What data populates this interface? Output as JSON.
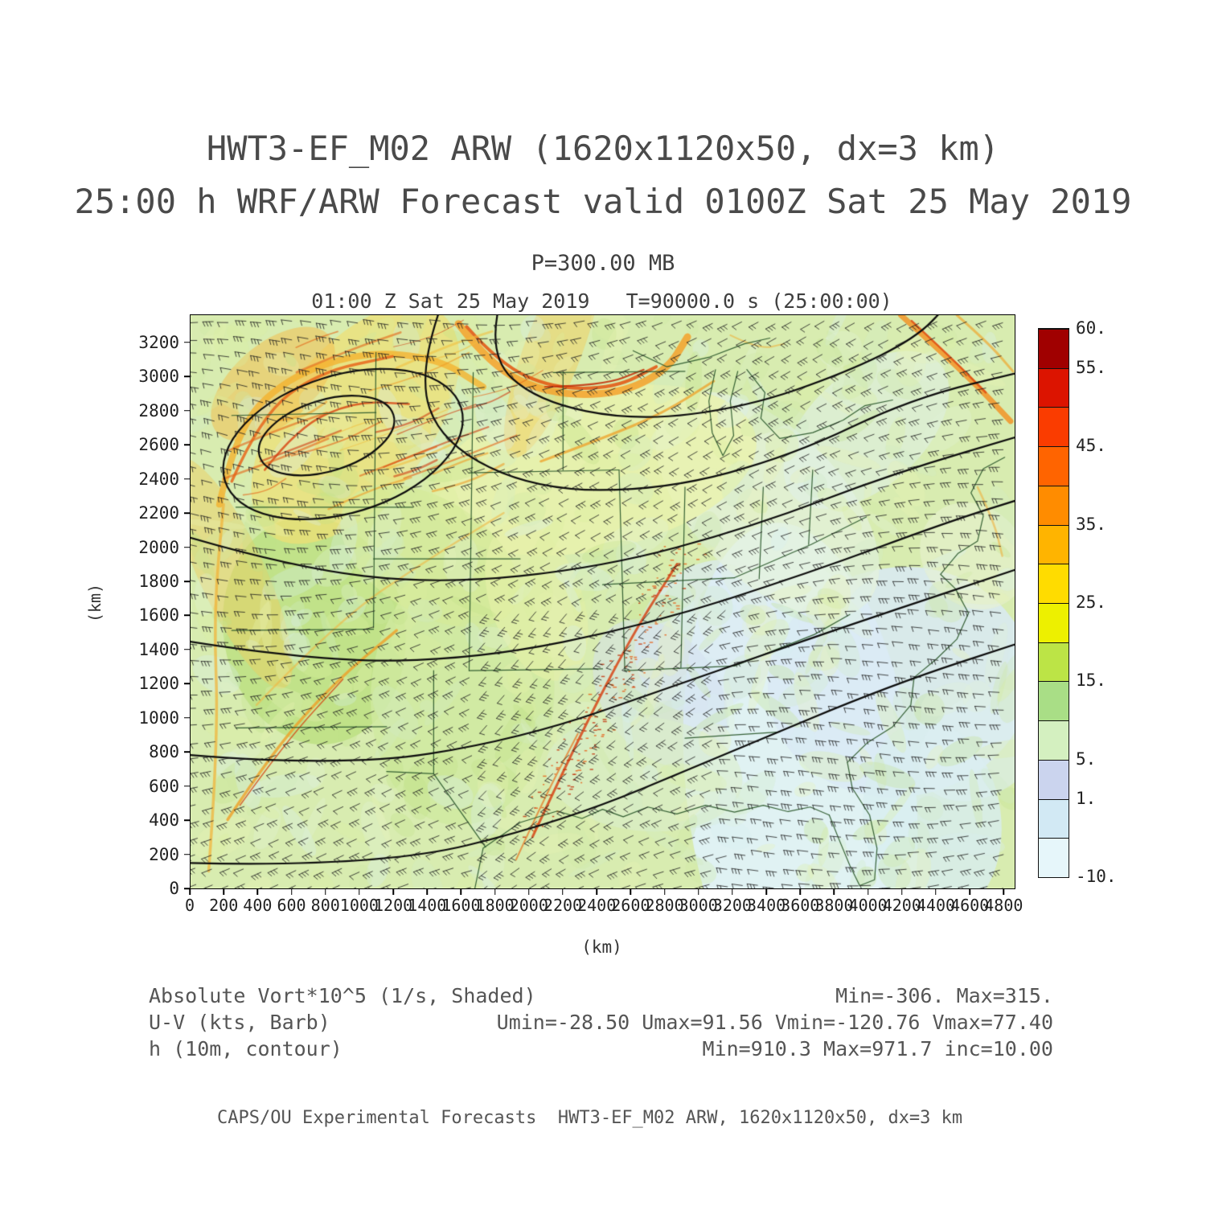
{
  "page": {
    "title_line1": "HWT3-EF_M02 ARW (1620x1120x50, dx=3 km)",
    "title_line2": "25:00 h WRF/ARW Forecast valid 0100Z Sat 25 May 2019",
    "pressure_label": "P=300.00 MB",
    "time_label": "01:00 Z Sat 25 May 2019   T=90000.0 s (25:00:00)",
    "footer": "CAPS/OU Experimental Forecasts  HWT3-EF_M02 ARW, 1620x1120x50, dx=3 km"
  },
  "legend": {
    "rows": [
      {
        "label": "Absolute Vort*10^5 (1/s, Shaded)",
        "stats": "Min=-306. Max=315."
      },
      {
        "label": "U-V (kts, Barb)",
        "stats": "Umin=-28.50 Umax=91.56 Vmin=-120.76 Vmax=77.40"
      },
      {
        "label": "h (10m, contour)",
        "stats": "Min=910.3 Max=971.7 inc=10.00"
      }
    ]
  },
  "chart_data": {
    "type": "heatmap",
    "title": "HWT3-EF_M02 ARW (1620x1120x50, dx=3 km)",
    "subtitle": "25:00 h WRF/ARW Forecast valid 0100Z Sat 25 May 2019",
    "pressure_level": "P=300.00 MB",
    "valid_time": "01:00 Z Sat 25 May 2019",
    "model_time": "T=90000.0 s (25:00:00)",
    "xlabel": "(km)",
    "ylabel": "(km)",
    "xlim": [
      0,
      4860
    ],
    "ylim": [
      0,
      3360
    ],
    "x_ticks": [
      0,
      200,
      400,
      600,
      800,
      1000,
      1200,
      1400,
      1600,
      1800,
      2000,
      2200,
      2400,
      2600,
      2800,
      3000,
      3200,
      3400,
      3600,
      3800,
      4000,
      4200,
      4400,
      4600,
      4800
    ],
    "y_ticks": [
      0,
      200,
      400,
      600,
      800,
      1000,
      1200,
      1400,
      1600,
      1800,
      2000,
      2200,
      2400,
      2600,
      2800,
      3000,
      3200
    ],
    "grid": false,
    "legend_position": "right-colorbar",
    "colorbar": {
      "levels": [
        -10,
        -5,
        1,
        5,
        10,
        15,
        20,
        25,
        30,
        35,
        40,
        45,
        50,
        55,
        60
      ],
      "colors": [
        "#e6f6fa",
        "#d2e9f4",
        "#cbd4ee",
        "#d4f0c0",
        "#a9de86",
        "#bce446",
        "#edf000",
        "#ffdc00",
        "#ffb400",
        "#ff8c00",
        "#ff6400",
        "#fa3c00",
        "#dc1400",
        "#a00000"
      ],
      "tick_labels": [
        {
          "text": "60.",
          "level": 60
        },
        {
          "text": "55.",
          "level": 55
        },
        {
          "text": "45.",
          "level": 45
        },
        {
          "text": "35.",
          "level": 35
        },
        {
          "text": "25.",
          "level": 25
        },
        {
          "text": "15.",
          "level": 15
        },
        {
          "text": "5.",
          "level": 5
        },
        {
          "text": "1.",
          "level": 1
        },
        {
          "text": "-10.",
          "level": -10
        }
      ]
    },
    "fields": [
      {
        "name": "Absolute Vort*10^5 (1/s, Shaded)",
        "min": -306,
        "max": 315
      },
      {
        "name": "U-V (kts, Barb)",
        "umin": -28.5,
        "umax": 91.56,
        "vmin": -120.76,
        "vmax": 77.4
      },
      {
        "name": "h (10m, contour)",
        "min": 910.3,
        "max": 971.7,
        "inc": 10.0
      }
    ]
  }
}
